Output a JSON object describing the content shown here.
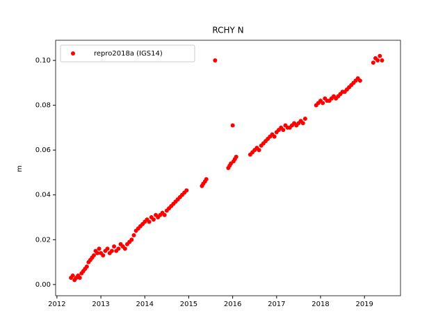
{
  "chart_data": {
    "type": "scatter",
    "title": "RCHY N",
    "y_label": "m",
    "x": [
      2012.32,
      2012.36,
      2012.4,
      2012.44,
      2012.48,
      2012.52,
      2012.56,
      2012.6,
      2012.64,
      2012.68,
      2012.72,
      2012.76,
      2012.8,
      2012.84,
      2012.88,
      2012.92,
      2012.96,
      2013.0,
      2013.05,
      2013.1,
      2013.15,
      2013.2,
      2013.25,
      2013.3,
      2013.35,
      2013.4,
      2013.45,
      2013.5,
      2013.55,
      2013.6,
      2013.65,
      2013.7,
      2013.75,
      2013.8,
      2013.85,
      2013.9,
      2013.95,
      2014.0,
      2014.05,
      2014.1,
      2014.15,
      2014.2,
      2014.25,
      2014.3,
      2014.35,
      2014.4,
      2014.45,
      2014.5,
      2014.55,
      2014.6,
      2014.65,
      2014.7,
      2014.75,
      2014.8,
      2014.85,
      2014.9,
      2014.95,
      2015.3,
      2015.33,
      2015.37,
      2015.4,
      2015.6,
      2015.9,
      2015.93,
      2015.96,
      2016.0,
      2016.02,
      2016.05,
      2016.08,
      2016.4,
      2016.45,
      2016.5,
      2016.55,
      2016.6,
      2016.65,
      2016.7,
      2016.75,
      2016.8,
      2016.85,
      2016.9,
      2016.95,
      2017.0,
      2017.05,
      2017.1,
      2017.15,
      2017.2,
      2017.25,
      2017.3,
      2017.35,
      2017.4,
      2017.45,
      2017.5,
      2017.55,
      2017.6,
      2017.65,
      2017.9,
      2017.95,
      2018.0,
      2018.05,
      2018.1,
      2018.15,
      2018.2,
      2018.25,
      2018.3,
      2018.35,
      2018.4,
      2018.45,
      2018.5,
      2018.55,
      2018.6,
      2018.65,
      2018.7,
      2018.75,
      2018.8,
      2018.85,
      2018.9,
      2019.2,
      2019.25,
      2019.3,
      2019.35,
      2019.4
    ],
    "series": [
      {
        "name": "repro2018a (IGS14)",
        "color": "#ff0000",
        "values": [
          0.003,
          0.004,
          0.002,
          0.003,
          0.004,
          0.003,
          0.005,
          0.006,
          0.007,
          0.008,
          0.01,
          0.011,
          0.012,
          0.013,
          0.015,
          0.014,
          0.016,
          0.014,
          0.013,
          0.015,
          0.016,
          0.014,
          0.015,
          0.017,
          0.015,
          0.016,
          0.018,
          0.017,
          0.016,
          0.018,
          0.019,
          0.02,
          0.022,
          0.024,
          0.025,
          0.026,
          0.027,
          0.028,
          0.029,
          0.028,
          0.03,
          0.029,
          0.031,
          0.03,
          0.031,
          0.032,
          0.031,
          0.033,
          0.034,
          0.035,
          0.036,
          0.037,
          0.038,
          0.039,
          0.04,
          0.041,
          0.042,
          0.044,
          0.045,
          0.046,
          0.047,
          0.1,
          0.052,
          0.053,
          0.054,
          0.071,
          0.055,
          0.056,
          0.057,
          0.058,
          0.059,
          0.06,
          0.061,
          0.06,
          0.062,
          0.063,
          0.064,
          0.065,
          0.066,
          0.067,
          0.066,
          0.068,
          0.069,
          0.07,
          0.069,
          0.071,
          0.07,
          0.07,
          0.071,
          0.072,
          0.071,
          0.072,
          0.073,
          0.072,
          0.074,
          0.08,
          0.081,
          0.082,
          0.081,
          0.083,
          0.082,
          0.082,
          0.083,
          0.084,
          0.083,
          0.084,
          0.085,
          0.086,
          0.086,
          0.087,
          0.088,
          0.089,
          0.09,
          0.091,
          0.092,
          0.091,
          0.099,
          0.101,
          0.1,
          0.102,
          0.1
        ]
      }
    ],
    "xlim": [
      2011.97,
      2019.82
    ],
    "ylim": [
      -0.005,
      0.109
    ],
    "xticks": [
      2012,
      2013,
      2014,
      2015,
      2016,
      2017,
      2018,
      2019
    ],
    "yticks": [
      {
        "value": 0,
        "label": "0.00"
      },
      {
        "value": 0.02,
        "label": "0.02"
      },
      {
        "value": 0.04,
        "label": "0.04"
      },
      {
        "value": 0.06,
        "label": "0.06"
      },
      {
        "value": 0.08,
        "label": "0.08"
      },
      {
        "value": 0.1,
        "label": "0.10"
      }
    ],
    "legend": "upper left"
  }
}
